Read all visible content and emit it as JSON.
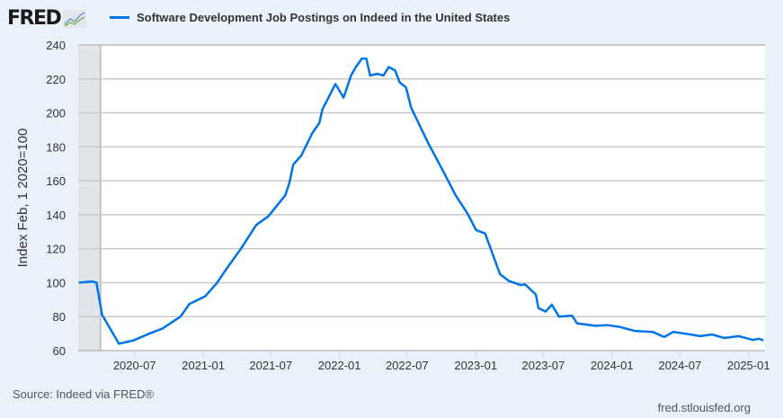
{
  "header": {
    "logo": "FRED",
    "logo_icon": "line-chart-icon"
  },
  "chart_data": {
    "type": "line",
    "title": "",
    "xlabel": "",
    "ylabel": "Index Feb, 1 2020=100",
    "ylim": [
      60,
      240
    ],
    "xlim": [
      "2020-02-01",
      "2025-02-14"
    ],
    "yticks": [
      60,
      80,
      100,
      120,
      140,
      160,
      180,
      200,
      220,
      240
    ],
    "xticks": [
      "2020-07",
      "2021-01",
      "2021-07",
      "2022-01",
      "2022-07",
      "2023-01",
      "2023-07",
      "2024-01",
      "2024-07",
      "2025-01"
    ],
    "grid": true,
    "legend_position": "top",
    "recession_shading": [
      "2020-02-01",
      "2020-04-01"
    ],
    "series": [
      {
        "name": "Software Development Job Postings on Indeed in the United States",
        "color": "#0073e6",
        "x": [
          "2020-02-03",
          "2020-03-09",
          "2020-03-21",
          "2020-04-05",
          "2020-04-29",
          "2020-05-20",
          "2020-06-28",
          "2020-08-04",
          "2020-09-14",
          "2020-11-01",
          "2020-11-25",
          "2021-01-06",
          "2021-02-06",
          "2021-03-07",
          "2021-04-12",
          "2021-05-23",
          "2021-06-24",
          "2021-08-09",
          "2021-08-20",
          "2021-08-30",
          "2021-09-21",
          "2021-10-20",
          "2021-11-08",
          "2021-11-16",
          "2021-11-28",
          "2021-12-21",
          "2022-01-12",
          "2022-02-01",
          "2022-02-13",
          "2022-03-02",
          "2022-03-14",
          "2022-03-24",
          "2022-04-12",
          "2022-04-29",
          "2022-05-13",
          "2022-05-30",
          "2022-06-11",
          "2022-06-28",
          "2022-07-12",
          "2022-08-03",
          "2022-08-27",
          "2022-10-05",
          "2022-11-08",
          "2022-12-09",
          "2023-01-02",
          "2023-01-26",
          "2023-03-07",
          "2023-03-31",
          "2023-05-01",
          "2023-05-13",
          "2023-06-11",
          "2023-06-18",
          "2023-07-07",
          "2023-07-24",
          "2023-08-12",
          "2023-09-16",
          "2023-09-30",
          "2023-11-17",
          "2023-12-20",
          "2024-01-21",
          "2024-03-01",
          "2024-04-19",
          "2024-05-20",
          "2024-06-13",
          "2024-07-14",
          "2024-08-24",
          "2024-09-25",
          "2024-10-28",
          "2024-12-06",
          "2025-01-12",
          "2025-01-29",
          "2025-02-10"
        ],
        "y": [
          100,
          100.7,
          100,
          81,
          72,
          64,
          66,
          69.5,
          73,
          80,
          87.5,
          92,
          99.6,
          109,
          120,
          134,
          139,
          151.5,
          159,
          169.5,
          175,
          188,
          194,
          202,
          207,
          217,
          209,
          222,
          226.7,
          232,
          232,
          222,
          223,
          222,
          227,
          225,
          218,
          215,
          203,
          193,
          182,
          166,
          151.5,
          141,
          131,
          129,
          105,
          101,
          98.6,
          99,
          93,
          85,
          83,
          87,
          80,
          80.6,
          76,
          74.6,
          75,
          74,
          71.6,
          71,
          68,
          71,
          70,
          68.5,
          69.5,
          67.4,
          68.5,
          66.3,
          67,
          66
        ]
      }
    ]
  },
  "footer": {
    "source": "Source: Indeed via FRED®",
    "site": "fred.stlouisfed.org"
  }
}
